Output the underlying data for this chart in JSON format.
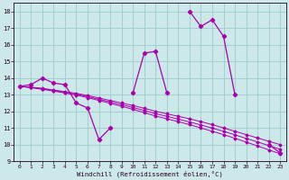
{
  "xlabel": "Windchill (Refroidissement éolien,°C)",
  "bg_color": "#cce8e8",
  "grid_color": "#99cccc",
  "line_color": "#aa00aa",
  "x_values": [
    0,
    1,
    2,
    3,
    4,
    5,
    6,
    7,
    8,
    9,
    10,
    11,
    12,
    13,
    14,
    15,
    16,
    17,
    18,
    19,
    20,
    21,
    22,
    23
  ],
  "main_line": [
    13.5,
    13.6,
    14.0,
    13.7,
    13.6,
    12.5,
    12.2,
    10.3,
    11.0,
    null,
    13.1,
    15.5,
    15.6,
    13.1,
    null,
    18.0,
    17.1,
    17.5,
    16.5,
    13.0,
    null,
    null,
    10.0,
    9.5
  ],
  "trend1": [
    13.5,
    13.45,
    13.38,
    13.28,
    13.18,
    13.08,
    12.95,
    12.8,
    12.65,
    12.5,
    12.35,
    12.18,
    12.0,
    11.85,
    11.7,
    11.55,
    11.38,
    11.2,
    11.0,
    10.8,
    10.6,
    10.4,
    10.2,
    10.0
  ],
  "trend2": [
    13.5,
    13.42,
    13.32,
    13.22,
    13.1,
    12.98,
    12.82,
    12.65,
    12.48,
    12.3,
    12.12,
    11.92,
    11.72,
    11.55,
    11.38,
    11.2,
    11.0,
    10.8,
    10.6,
    10.38,
    10.15,
    9.92,
    9.68,
    9.45
  ],
  "trend3": [
    13.5,
    13.44,
    13.35,
    13.25,
    13.14,
    13.03,
    12.88,
    12.72,
    12.56,
    12.4,
    12.23,
    12.05,
    11.86,
    11.7,
    11.53,
    11.36,
    11.18,
    10.99,
    10.8,
    10.59,
    10.37,
    10.16,
    9.94,
    9.72
  ],
  "ylim_min": 9,
  "ylim_max": 18.5,
  "yticks": [
    9,
    10,
    11,
    12,
    13,
    14,
    15,
    16,
    17,
    18
  ],
  "xticks": [
    0,
    1,
    2,
    3,
    4,
    5,
    6,
    7,
    8,
    9,
    10,
    11,
    12,
    13,
    14,
    15,
    16,
    17,
    18,
    19,
    20,
    21,
    22,
    23
  ]
}
